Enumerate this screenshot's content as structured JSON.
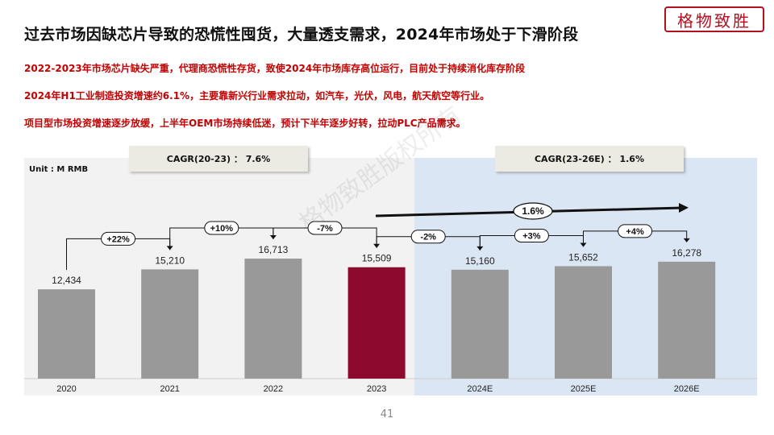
{
  "title": "过去市场因缺芯片导致的恐慌性囤货，大量透支需求，2024年市场处于下滑阶段",
  "logo_text": "格物致胜",
  "bullets": [
    "2022-2023年市场芯片缺失严重，代理商恐慌性存货，致使2024年市场库存高位运行，目前处于持续消化库存阶段",
    "2024年H1工业制造投资增速约6.1%，主要靠新兴行业需求拉动，如汽车，光伏，风电，航天航空等行业。",
    "项目型市场投资增速逐步放缓，上半年OEM市场持续低迷，预计下半年逐步好转，拉动PLC产品需求。"
  ],
  "watermark": "格物致胜版权所有",
  "page_number": "41",
  "colors": {
    "bar": "#999999",
    "highlight_bar": "#8b0a2e",
    "forecast_bg": "#dbe6f4",
    "history_bg": "#f2f2f2",
    "accent_text": "#c00000"
  },
  "chart_data": {
    "type": "bar",
    "unit_label": "Unit : M RMB",
    "categories": [
      "2020",
      "2021",
      "2022",
      "2023",
      "2024E",
      "2025E",
      "2026E"
    ],
    "values": [
      12434,
      15210,
      16713,
      15509,
      15160,
      15652,
      16278
    ],
    "value_labels": [
      "12,434",
      "15,210",
      "16,713",
      "15,509",
      "15,160",
      "15,652",
      "16,278"
    ],
    "highlight_index": 3,
    "forecast_start_index": 4,
    "growth_labels": [
      "+22%",
      "+10%",
      "-7%",
      "-2%",
      "+3%",
      "+4%"
    ],
    "cagr_history": "CAGR(20-23) ：  7.6%",
    "cagr_forecast": "CAGR(23-26E) ：  1.6%",
    "trend_label": "1.6%"
  }
}
